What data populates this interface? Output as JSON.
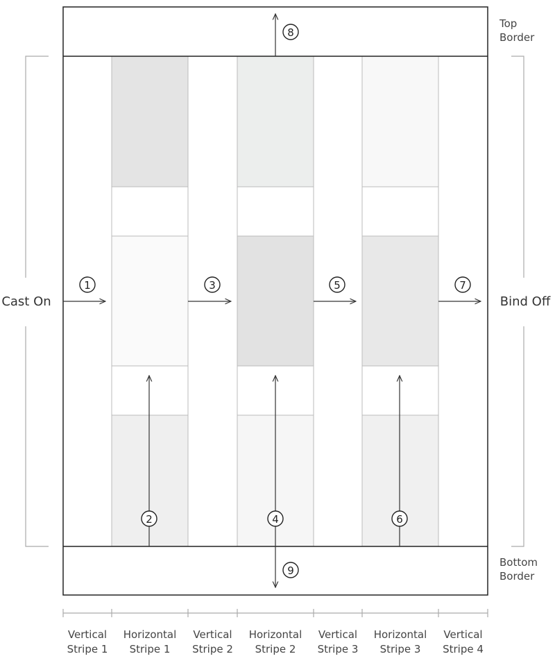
{
  "borders": {
    "top": [
      "Top",
      "Border"
    ],
    "bottom": [
      "Bottom",
      "Border"
    ]
  },
  "sides": {
    "left": "Cast On",
    "right": "Bind Off"
  },
  "steps": [
    "1",
    "2",
    "3",
    "4",
    "5",
    "6",
    "7",
    "8",
    "9"
  ],
  "stripes": [
    [
      "Vertical",
      "Stripe 1"
    ],
    [
      "Horizontal",
      "Stripe 1"
    ],
    [
      "Vertical",
      "Stripe 2"
    ],
    [
      "Horizontal",
      "Stripe 2"
    ],
    [
      "Vertical",
      "Stripe 3"
    ],
    [
      "Horizontal",
      "Stripe 3"
    ],
    [
      "Vertical",
      "Stripe 4"
    ]
  ]
}
